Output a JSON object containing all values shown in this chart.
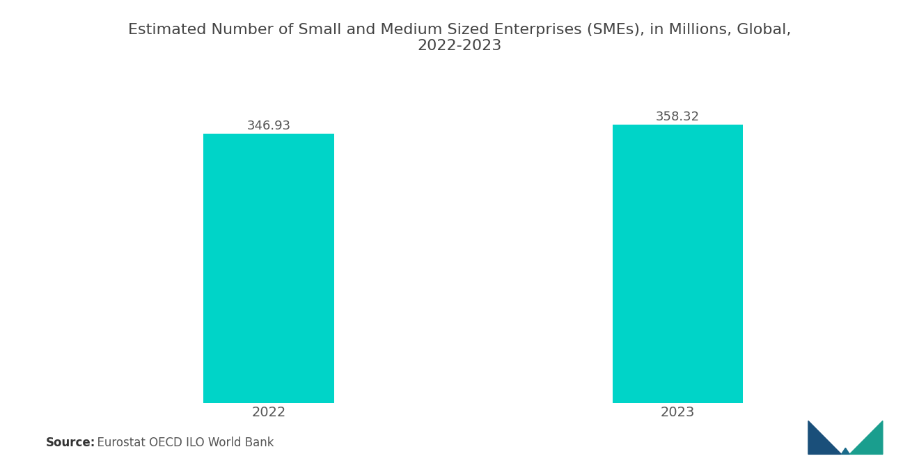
{
  "title": "Estimated Number of Small and Medium Sized Enterprises (SMEs), in Millions, Global,\n2022-2023",
  "categories": [
    "2022",
    "2023"
  ],
  "values": [
    346.93,
    358.32
  ],
  "bar_color": "#00D4C8",
  "background_color": "#ffffff",
  "bar_width": 0.32,
  "ylim": [
    0,
    400
  ],
  "value_labels": [
    "346.93",
    "358.32"
  ],
  "source_label_bold": "Source:",
  "source_text_normal": "  Eurostat OECD ILO World Bank",
  "title_fontsize": 16,
  "label_fontsize": 14,
  "value_fontsize": 13,
  "source_fontsize": 12
}
